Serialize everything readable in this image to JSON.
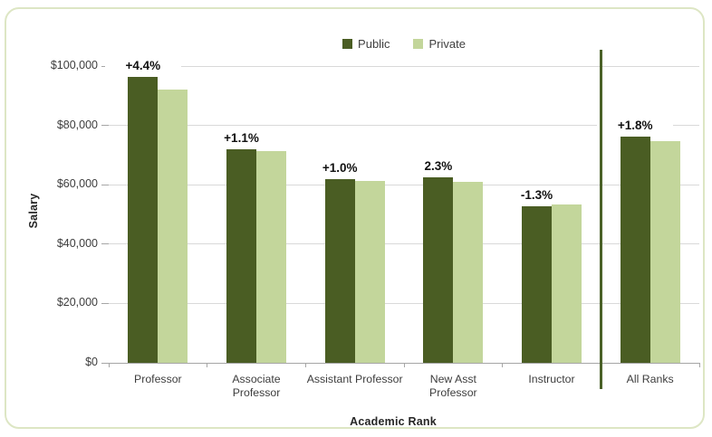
{
  "chart": {
    "box_border_color": "#dde6c4",
    "background": "#ffffff"
  },
  "chart_data": {
    "type": "bar",
    "title": "",
    "xlabel": "Academic Rank",
    "ylabel": "Salary",
    "categories": [
      "Professor",
      "Associate\nProfessor",
      "Assistant Professor",
      "New Asst\nProfessor",
      "Instructor",
      "All Ranks"
    ],
    "series": [
      {
        "name": "Public",
        "color": "#4a5d23",
        "values": [
          96200,
          72100,
          61900,
          62400,
          52700,
          76100
        ]
      },
      {
        "name": "Private",
        "color": "#c3d69b",
        "values": [
          92100,
          71300,
          61300,
          61000,
          53400,
          74800
        ]
      }
    ],
    "data_labels": [
      "+4.4%",
      "+1.1%",
      "+1.0%",
      "2.3%",
      "-1.3%",
      "+1.8%"
    ],
    "ylim": [
      0,
      100000
    ],
    "ytick_values": [
      0,
      20000,
      40000,
      60000,
      80000,
      100000
    ],
    "ytick_labels": [
      "$0",
      "$20,000",
      "$40,000",
      "$60,000",
      "$80,000",
      "$100,000"
    ],
    "grid": true,
    "legend_position": "top-center",
    "separator_before_category": "All Ranks",
    "separator_color": "#4a6128",
    "gridline_color": "#d9d9d9",
    "axis_line_color": "#a6a6a6"
  }
}
